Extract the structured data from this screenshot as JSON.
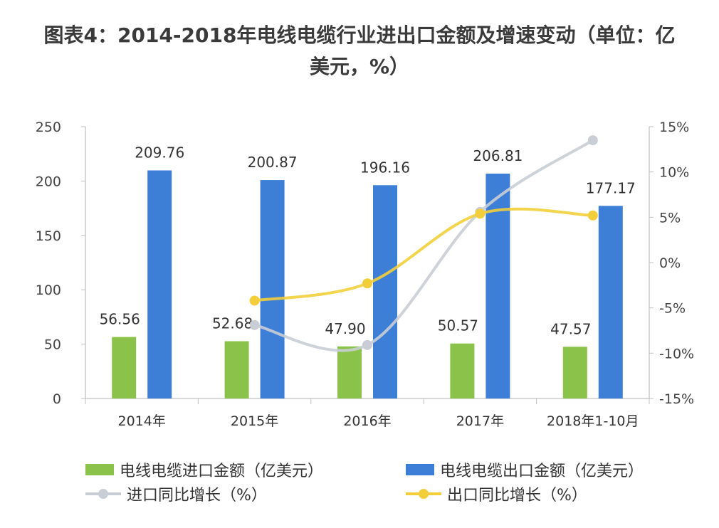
{
  "title": {
    "line1": "图表4：2014-2018年电线电缆行业进出口金额及增速变动（单位：亿",
    "line2": "美元，%）"
  },
  "colors": {
    "import_bar": "#8bc34a",
    "export_bar": "#3d7fd6",
    "import_growth": "#c9ced6",
    "export_growth": "#f2cf3a",
    "axis": "#bfbfbf",
    "text": "#333333"
  },
  "legend": {
    "import_amount": "电线电缆进口金额（亿美元）",
    "export_amount": "电线电缆出口金额（亿美元）",
    "import_growth": "进口同比增长（%）",
    "export_growth": "出口同比增长（%）"
  },
  "chart_data": {
    "type": "bar",
    "categories": [
      "2014年",
      "2015年",
      "2016年",
      "2017年",
      "2018年1-10月"
    ],
    "series": [
      {
        "name": "电线电缆进口金额（亿美元）",
        "type": "bar",
        "axis": "left",
        "values": [
          56.56,
          52.68,
          47.9,
          50.57,
          47.57
        ],
        "labels": [
          "56.56",
          "52.68",
          "47.90",
          "50.57",
          "47.57"
        ]
      },
      {
        "name": "电线电缆出口金额（亿美元）",
        "type": "bar",
        "axis": "left",
        "values": [
          209.76,
          200.87,
          196.16,
          206.81,
          177.17
        ],
        "labels": [
          "209.76",
          "200.87",
          "196.16",
          "206.81",
          "177.17"
        ]
      },
      {
        "name": "进口同比增长（%）",
        "type": "line",
        "axis": "right",
        "values": [
          null,
          -6.9,
          -9.1,
          5.6,
          13.5
        ]
      },
      {
        "name": "出口同比增长（%）",
        "type": "line",
        "axis": "right",
        "values": [
          null,
          -4.2,
          -2.3,
          5.4,
          5.2
        ]
      }
    ],
    "left_axis": {
      "ylim": [
        0,
        250
      ],
      "ticks": [
        "0",
        "50",
        "100",
        "150",
        "200",
        "250"
      ]
    },
    "right_axis": {
      "ylim": [
        -15,
        15
      ],
      "ticks": [
        "-15%",
        "-10%",
        "-5%",
        "0%",
        "5%",
        "10%",
        "15%"
      ]
    },
    "grid": false,
    "legend_position": "bottom"
  }
}
